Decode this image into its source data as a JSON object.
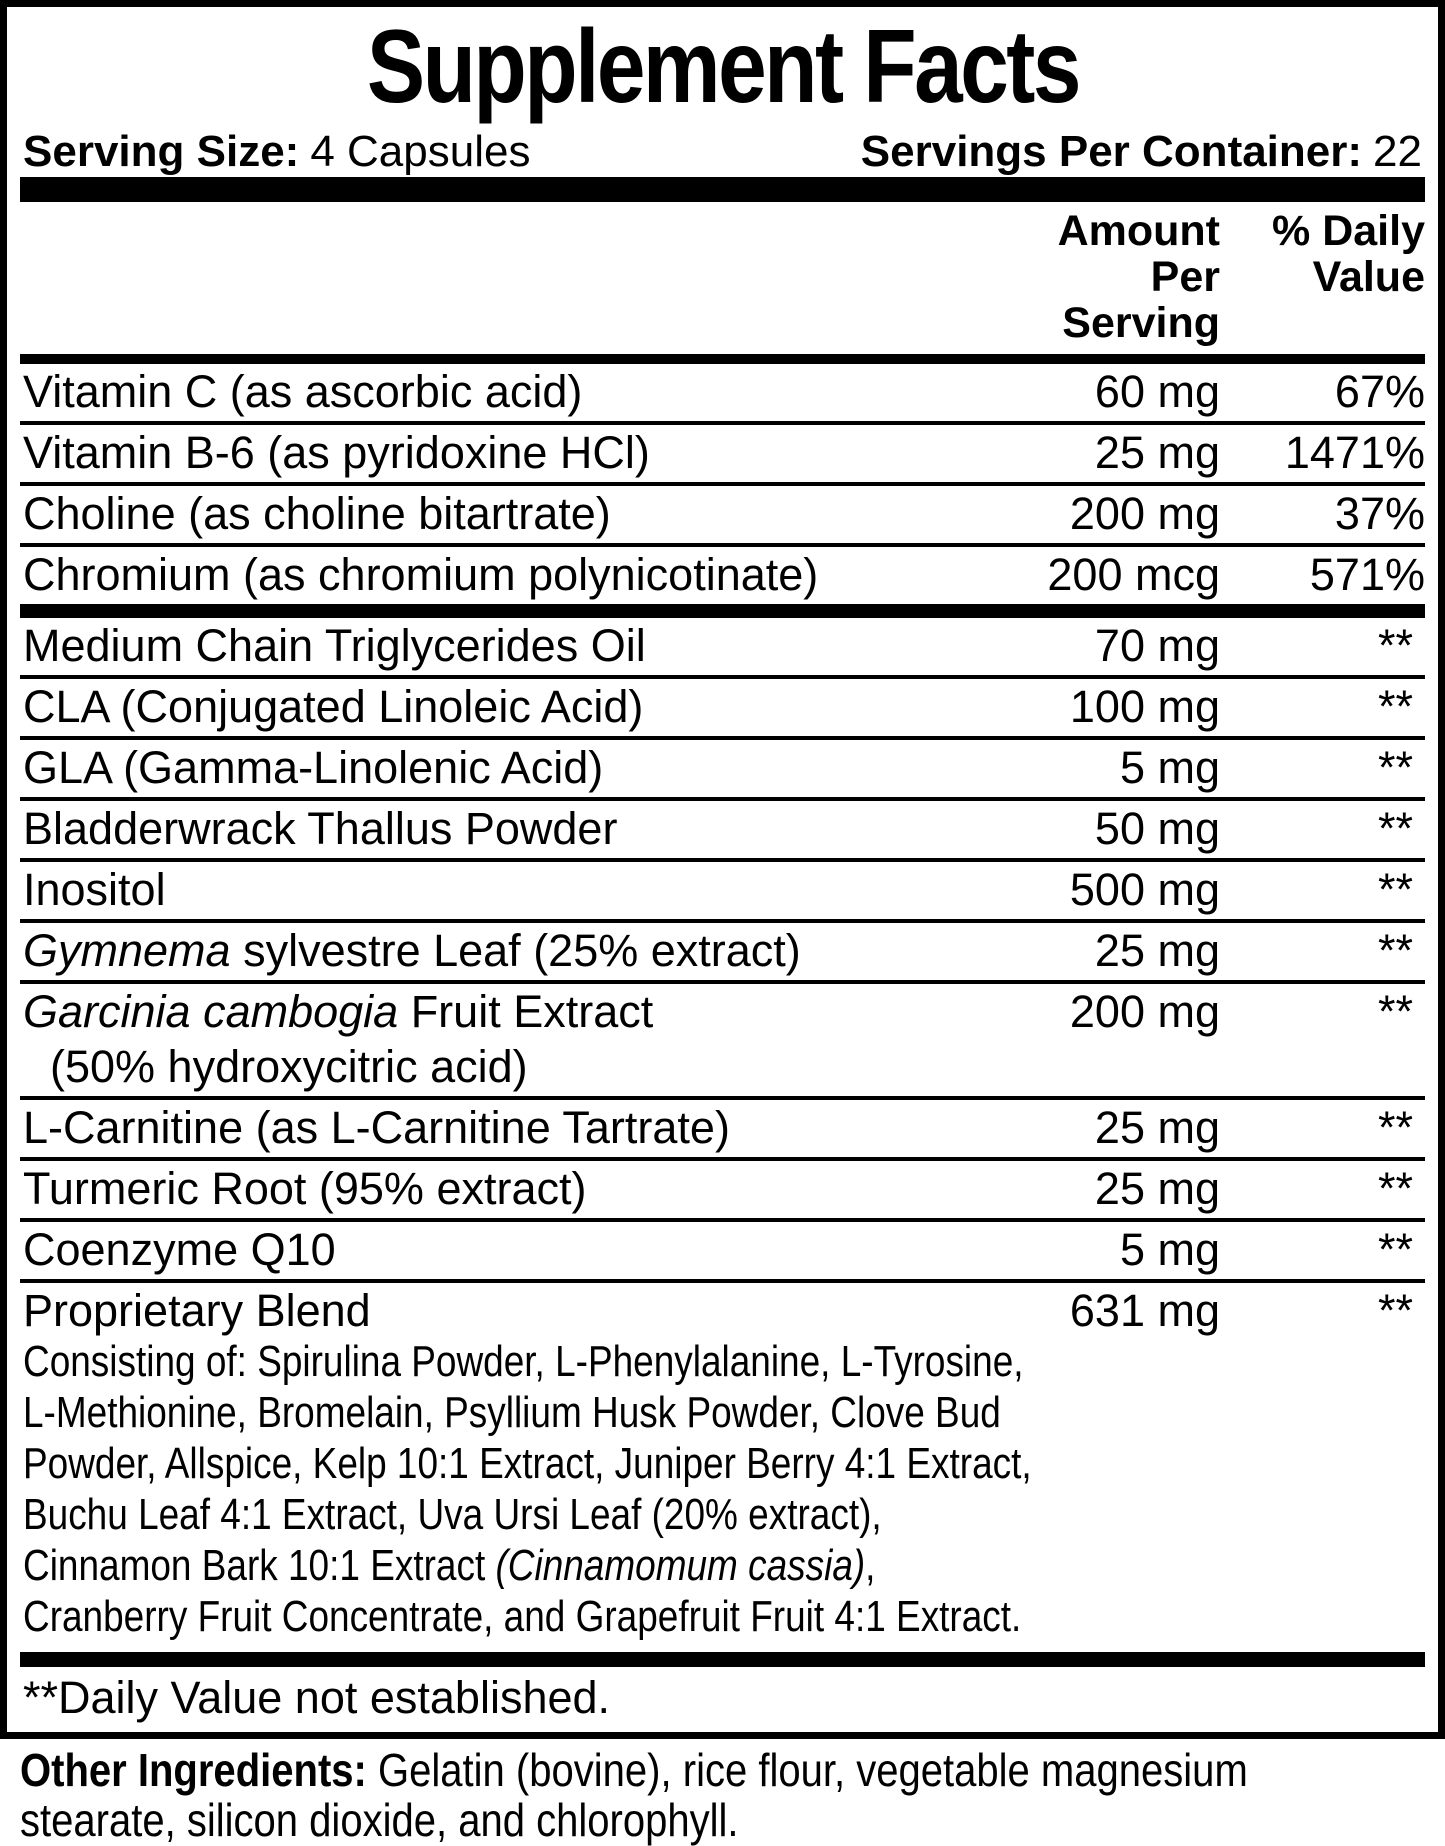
{
  "label": {
    "title": "Supplement Facts",
    "serving_size": {
      "label": "Serving Size:",
      "value": "4 Capsules"
    },
    "servings_per_container": {
      "label": "Servings Per Container:",
      "value": "22"
    },
    "columns": {
      "amount_line1": "Amount Per",
      "amount_line2": "Serving",
      "dv_line1": "% Daily",
      "dv_line2": "Value"
    },
    "rows": [
      {
        "name": [
          {
            "t": "Vitamin C (as ascorbic acid)"
          }
        ],
        "amount": "60 mg",
        "dv": "67%",
        "divider": "thin"
      },
      {
        "name": [
          {
            "t": "Vitamin B-6 (as pyridoxine HCl)"
          }
        ],
        "amount": "25 mg",
        "dv": "1471%",
        "divider": "thin"
      },
      {
        "name": [
          {
            "t": "Choline (as choline bitartrate)"
          }
        ],
        "amount": "200 mg",
        "dv": "37%",
        "divider": "thin"
      },
      {
        "name": [
          {
            "t": "Chromium (as chromium polynicotinate)"
          }
        ],
        "amount": "200 mcg",
        "dv": "571%",
        "divider": "thick"
      },
      {
        "name": [
          {
            "t": "Medium Chain Triglycerides Oil"
          }
        ],
        "amount": "70 mg",
        "dv": "**",
        "divider": "thin"
      },
      {
        "name": [
          {
            "t": "CLA (Conjugated Linoleic Acid)"
          }
        ],
        "amount": "100 mg",
        "dv": "**",
        "divider": "thin"
      },
      {
        "name": [
          {
            "t": "GLA (Gamma-Linolenic Acid)"
          }
        ],
        "amount": "5 mg",
        "dv": "**",
        "divider": "thin"
      },
      {
        "name": [
          {
            "t": "Bladderwrack Thallus Powder"
          }
        ],
        "amount": "50 mg",
        "dv": "**",
        "divider": "thin"
      },
      {
        "name": [
          {
            "t": "Inositol"
          }
        ],
        "amount": "500 mg",
        "dv": "**",
        "divider": "thin"
      },
      {
        "name": [
          {
            "t": "Gymnema",
            "i": true
          },
          {
            "t": " sylvestre Leaf (25% extract)"
          }
        ],
        "amount": "25 mg",
        "dv": "**",
        "divider": "thin"
      },
      {
        "name": [
          {
            "t": "Garcinia cambogia",
            "i": true
          },
          {
            "t": " Fruit Extract"
          }
        ],
        "name_line2": "(50% hydroxycitric acid)",
        "amount": "200 mg",
        "dv": "**",
        "divider": "thin"
      },
      {
        "name": [
          {
            "t": "L-Carnitine (as L-Carnitine Tartrate)"
          }
        ],
        "amount": "25 mg",
        "dv": "**",
        "divider": "thin"
      },
      {
        "name": [
          {
            "t": "Turmeric Root (95% extract)"
          }
        ],
        "amount": "25 mg",
        "dv": "**",
        "divider": "thin"
      },
      {
        "name": [
          {
            "t": "Coenzyme Q10"
          }
        ],
        "amount": "5 mg",
        "dv": "**",
        "divider": "thin"
      },
      {
        "name": [
          {
            "t": "Proprietary Blend"
          }
        ],
        "amount": "631 mg",
        "dv": "**",
        "divider": "none",
        "description_lines": [
          [
            {
              "t": "Consisting of: Spirulina Powder, L-Phenylalanine, L-Tyrosine,"
            }
          ],
          [
            {
              "t": "L-Methionine, Bromelain, Psyllium Husk Powder, Clove Bud"
            }
          ],
          [
            {
              "t": "Powder, Allspice, Kelp 10:1 Extract, Juniper Berry 4:1 Extract,"
            }
          ],
          [
            {
              "t": "Buchu Leaf 4:1 Extract, Uva Ursi Leaf (20% extract),"
            }
          ],
          [
            {
              "t": "Cinnamon Bark 10:1 Extract "
            },
            {
              "t": "(Cinnamomum cassia)",
              "i": true
            },
            {
              "t": ","
            }
          ],
          [
            {
              "t": "Cranberry Fruit Concentrate, and Grapefruit Fruit 4:1 Extract."
            }
          ]
        ]
      }
    ],
    "footnote": "**Daily Value not established.",
    "other_ingredients": {
      "label": "Other Ingredients:",
      "line1_rest": " Gelatin (bovine), rice flour, vegetable magnesium",
      "line2": "stearate, silicon dioxide, and chlorophyll."
    }
  },
  "colors": {
    "ink": "#000000",
    "paper": "#ffffff"
  }
}
